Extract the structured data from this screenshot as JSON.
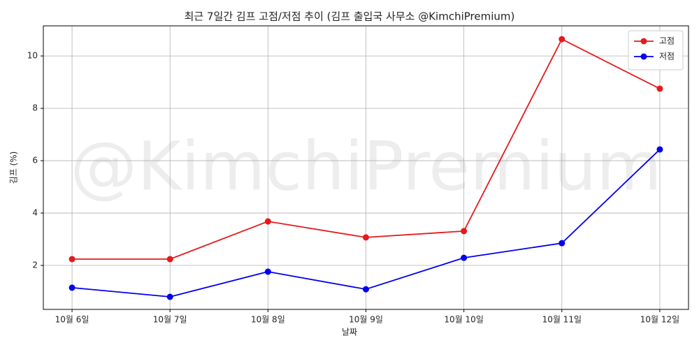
{
  "chart_data": {
    "type": "line",
    "title": "최근 7일간 김프 고점/저점 추이 (김프 출입국 사무소 @KimchiPremium)",
    "watermark": "@KimchiPremium",
    "x_label": "날짜",
    "y_label": "김프 (%)",
    "categories": [
      "10월 6일",
      "10월 7일",
      "10월 8일",
      "10월 9일",
      "10월 10일",
      "10월 11일",
      "10월 12일"
    ],
    "series": [
      {
        "name": "고점",
        "color": "#e41a1c",
        "values": [
          2.24,
          2.24,
          3.68,
          3.07,
          3.31,
          10.64,
          8.75
        ]
      },
      {
        "name": "저점",
        "color": "#0000ee",
        "values": [
          1.15,
          0.8,
          1.76,
          1.09,
          2.29,
          2.85,
          6.43
        ]
      }
    ],
    "ylim": [
      0.32,
      11.15
    ],
    "yticks": [
      2,
      4,
      6,
      8,
      10
    ],
    "grid": true,
    "legend": "upper right"
  }
}
